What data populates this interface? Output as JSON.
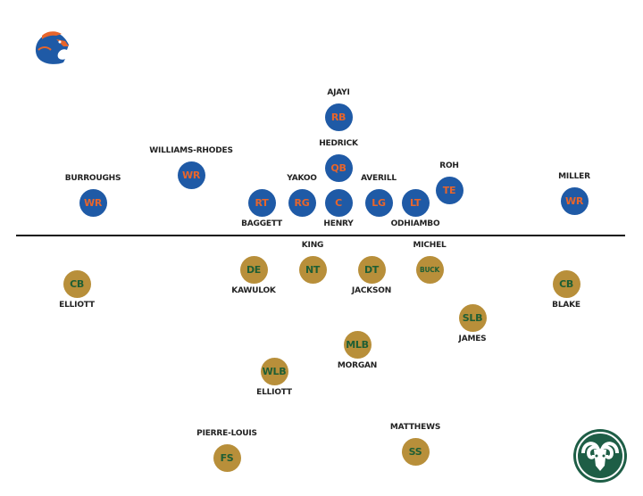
{
  "colors": {
    "offense_fill": "#1f5aa6",
    "offense_text": "#e8652b",
    "defense_fill": "#b88f3a",
    "defense_text": "#1e5e34",
    "line": "#111111"
  },
  "logos": {
    "offense": {
      "icon": "boise-state-bronco-logo-icon"
    },
    "defense": {
      "icon": "colorado-state-ram-logo-icon"
    }
  },
  "offense": [
    {
      "pos": "RB",
      "name": "AJAYI",
      "label_side": "above"
    },
    {
      "pos": "QB",
      "name": "HEDRICK",
      "label_side": "above"
    },
    {
      "pos": "RT",
      "name": "BAGGETT",
      "label_side": "below"
    },
    {
      "pos": "RG",
      "name": "YAKOO",
      "label_side": "above"
    },
    {
      "pos": "C",
      "name": "HENRY",
      "label_side": "below"
    },
    {
      "pos": "LG",
      "name": "AVERILL",
      "label_side": "above"
    },
    {
      "pos": "LT",
      "name": "ODHIAMBO",
      "label_side": "below"
    },
    {
      "pos": "TE",
      "name": "ROH",
      "label_side": "above"
    },
    {
      "pos": "WR",
      "name": "BURROUGHS",
      "label_side": "above"
    },
    {
      "pos": "WR",
      "name": "WILLIAMS-RHODES",
      "label_side": "above"
    },
    {
      "pos": "WR",
      "name": "MILLER",
      "label_side": "above"
    }
  ],
  "defense": [
    {
      "pos": "CB",
      "name": "ELLIOTT",
      "label_side": "below"
    },
    {
      "pos": "DE",
      "name": "KAWULOK",
      "label_side": "below"
    },
    {
      "pos": "NT",
      "name": "KING",
      "label_side": "above"
    },
    {
      "pos": "DT",
      "name": "JACKSON",
      "label_side": "below"
    },
    {
      "pos": "BUCK",
      "name": "MICHEL",
      "label_side": "above"
    },
    {
      "pos": "CB",
      "name": "BLAKE",
      "label_side": "below"
    },
    {
      "pos": "SLB",
      "name": "JAMES",
      "label_side": "below"
    },
    {
      "pos": "MLB",
      "name": "MORGAN",
      "label_side": "below"
    },
    {
      "pos": "WLB",
      "name": "ELLIOTT",
      "label_side": "below"
    },
    {
      "pos": "FS",
      "name": "PIERRE-LOUIS",
      "label_side": "above"
    },
    {
      "pos": "SS",
      "name": "MATTHEWS",
      "label_side": "above"
    }
  ]
}
